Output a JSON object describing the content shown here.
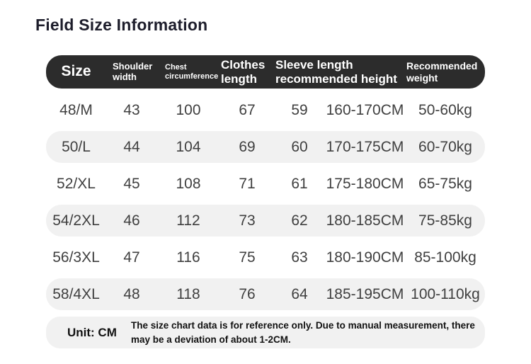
{
  "title": "Field Size Information",
  "colors": {
    "header_bg": "#2c2c2c",
    "header_text": "#ffffff",
    "stripe_bg": "#f1f1f1",
    "title_color": "#1d1d2b",
    "cell_text": "#404040"
  },
  "table": {
    "headers": {
      "size": "Size",
      "shoulder_width": "Shoulder width",
      "chest_circumference": "Chest circumference",
      "clothes_length": "Clothes length",
      "sleeve_length_recommended_height": "Sleeve length recommended height",
      "recommended_weight": "Recommended weight"
    },
    "rows": [
      {
        "size": "48/M",
        "shoulder_width": "43",
        "chest_circumference": "100",
        "clothes_length": "67",
        "sleeve_length": "59",
        "recommended_height": "160-170CM",
        "recommended_weight": "50-60kg"
      },
      {
        "size": "50/L",
        "shoulder_width": "44",
        "chest_circumference": "104",
        "clothes_length": "69",
        "sleeve_length": "60",
        "recommended_height": "170-175CM",
        "recommended_weight": "60-70kg"
      },
      {
        "size": "52/XL",
        "shoulder_width": "45",
        "chest_circumference": "108",
        "clothes_length": "71",
        "sleeve_length": "61",
        "recommended_height": "175-180CM",
        "recommended_weight": "65-75kg"
      },
      {
        "size": "54/2XL",
        "shoulder_width": "46",
        "chest_circumference": "112",
        "clothes_length": "73",
        "sleeve_length": "62",
        "recommended_height": "180-185CM",
        "recommended_weight": "75-85kg"
      },
      {
        "size": "56/3XL",
        "shoulder_width": "47",
        "chest_circumference": "116",
        "clothes_length": "75",
        "sleeve_length": "63",
        "recommended_height": "180-190CM",
        "recommended_weight": "85-100kg"
      },
      {
        "size": "58/4XL",
        "shoulder_width": "48",
        "chest_circumference": "118",
        "clothes_length": "76",
        "sleeve_length": "64",
        "recommended_height": "185-195CM",
        "recommended_weight": "100-110kg"
      }
    ]
  },
  "footer": {
    "unit_label": "Unit: CM",
    "note": "The size chart data is for reference only. Due to manual measurement, there may be a deviation of about 1-2CM."
  }
}
